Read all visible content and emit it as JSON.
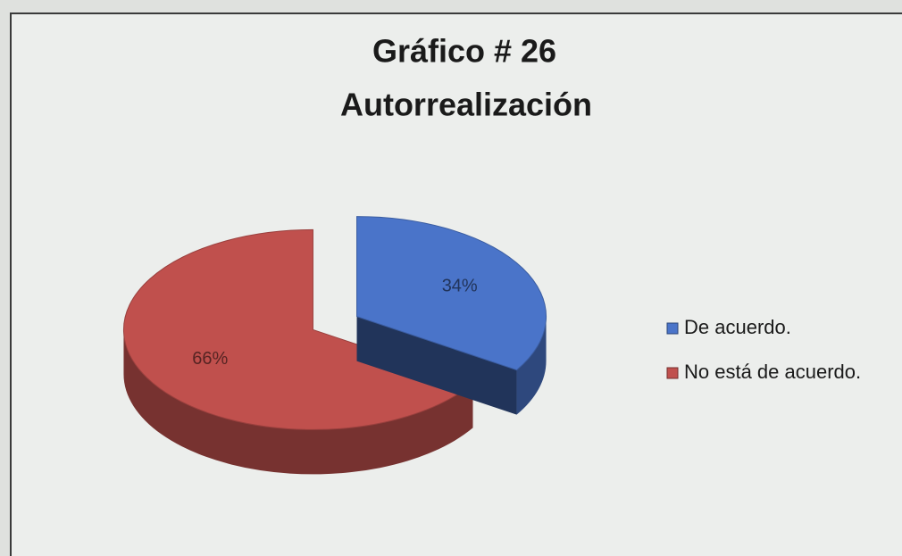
{
  "chart_data": {
    "type": "pie",
    "title": "Gráfico # 26",
    "subtitle": "Autorrealización",
    "categories": [
      "De acuerdo.",
      "No está de acuerdo."
    ],
    "values": [
      34,
      66
    ],
    "value_labels": [
      "34%",
      "66%"
    ],
    "colors": [
      "#4a74c9",
      "#c0504d"
    ],
    "legend": "right"
  }
}
